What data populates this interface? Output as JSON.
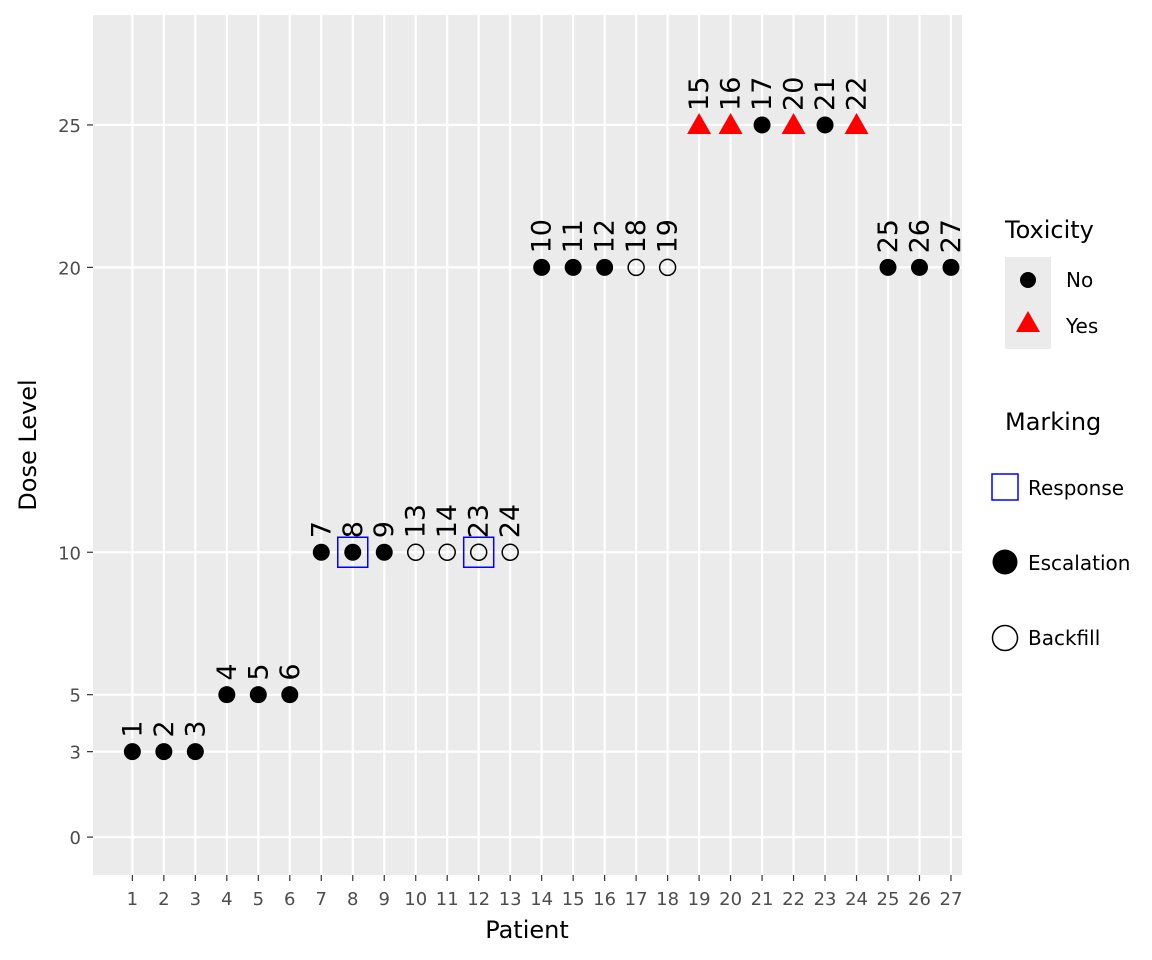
{
  "chart_data": {
    "type": "scatter",
    "xlabel": "Patient",
    "ylabel": "Dose Level",
    "xlim": [
      -0.25,
      27.35
    ],
    "ylim": [
      -1.33,
      28.86
    ],
    "x_ticks": [
      1,
      2,
      3,
      4,
      5,
      6,
      7,
      8,
      9,
      10,
      11,
      12,
      13,
      14,
      15,
      16,
      17,
      18,
      19,
      20,
      21,
      22,
      23,
      24,
      25,
      26,
      27
    ],
    "y_ticks": [
      0,
      3,
      5,
      10,
      20,
      25
    ],
    "grid": true,
    "colors": {
      "panel": "#EBEBEB",
      "no": "#000000",
      "yes": "#FF0000",
      "response": "#0000FF"
    },
    "points": [
      {
        "x": 1,
        "dose": 3,
        "label": "1",
        "tox": "No",
        "marking": "Escalation",
        "response": false
      },
      {
        "x": 2,
        "dose": 3,
        "label": "2",
        "tox": "No",
        "marking": "Escalation",
        "response": false
      },
      {
        "x": 3,
        "dose": 3,
        "label": "3",
        "tox": "No",
        "marking": "Escalation",
        "response": false
      },
      {
        "x": 4,
        "dose": 5,
        "label": "4",
        "tox": "No",
        "marking": "Escalation",
        "response": false
      },
      {
        "x": 5,
        "dose": 5,
        "label": "5",
        "tox": "No",
        "marking": "Escalation",
        "response": false
      },
      {
        "x": 6,
        "dose": 5,
        "label": "6",
        "tox": "No",
        "marking": "Escalation",
        "response": false
      },
      {
        "x": 7,
        "dose": 10,
        "label": "7",
        "tox": "No",
        "marking": "Escalation",
        "response": false
      },
      {
        "x": 8,
        "dose": 10,
        "label": "8",
        "tox": "No",
        "marking": "Escalation",
        "response": true
      },
      {
        "x": 9,
        "dose": 10,
        "label": "9",
        "tox": "No",
        "marking": "Escalation",
        "response": false
      },
      {
        "x": 10,
        "dose": 10,
        "label": "13",
        "tox": "No",
        "marking": "Backfill",
        "response": false
      },
      {
        "x": 11,
        "dose": 10,
        "label": "14",
        "tox": "No",
        "marking": "Backfill",
        "response": false
      },
      {
        "x": 12,
        "dose": 10,
        "label": "23",
        "tox": "No",
        "marking": "Backfill",
        "response": true
      },
      {
        "x": 13,
        "dose": 10,
        "label": "24",
        "tox": "No",
        "marking": "Backfill",
        "response": false
      },
      {
        "x": 14,
        "dose": 20,
        "label": "10",
        "tox": "No",
        "marking": "Escalation",
        "response": false
      },
      {
        "x": 15,
        "dose": 20,
        "label": "11",
        "tox": "No",
        "marking": "Escalation",
        "response": false
      },
      {
        "x": 16,
        "dose": 20,
        "label": "12",
        "tox": "No",
        "marking": "Escalation",
        "response": false
      },
      {
        "x": 17,
        "dose": 20,
        "label": "18",
        "tox": "No",
        "marking": "Backfill",
        "response": false
      },
      {
        "x": 18,
        "dose": 20,
        "label": "19",
        "tox": "No",
        "marking": "Backfill",
        "response": false
      },
      {
        "x": 19,
        "dose": 25,
        "label": "15",
        "tox": "Yes",
        "marking": "Escalation",
        "response": false
      },
      {
        "x": 20,
        "dose": 25,
        "label": "16",
        "tox": "Yes",
        "marking": "Escalation",
        "response": false
      },
      {
        "x": 21,
        "dose": 25,
        "label": "17",
        "tox": "No",
        "marking": "Escalation",
        "response": false
      },
      {
        "x": 22,
        "dose": 25,
        "label": "20",
        "tox": "Yes",
        "marking": "Escalation",
        "response": false
      },
      {
        "x": 23,
        "dose": 25,
        "label": "21",
        "tox": "No",
        "marking": "Escalation",
        "response": false
      },
      {
        "x": 24,
        "dose": 25,
        "label": "22",
        "tox": "Yes",
        "marking": "Escalation",
        "response": false
      },
      {
        "x": 25,
        "dose": 20,
        "label": "25",
        "tox": "No",
        "marking": "Escalation",
        "response": false
      },
      {
        "x": 26,
        "dose": 20,
        "label": "26",
        "tox": "No",
        "marking": "Escalation",
        "response": false
      },
      {
        "x": 27,
        "dose": 20,
        "label": "27",
        "tox": "No",
        "marking": "Escalation",
        "response": false
      }
    ],
    "legends": {
      "toxicity": {
        "title": "Toxicity",
        "entries": [
          "No",
          "Yes"
        ]
      },
      "marking": {
        "title": "Marking",
        "entries": [
          "Response",
          "Escalation",
          "Backfill"
        ]
      }
    }
  }
}
